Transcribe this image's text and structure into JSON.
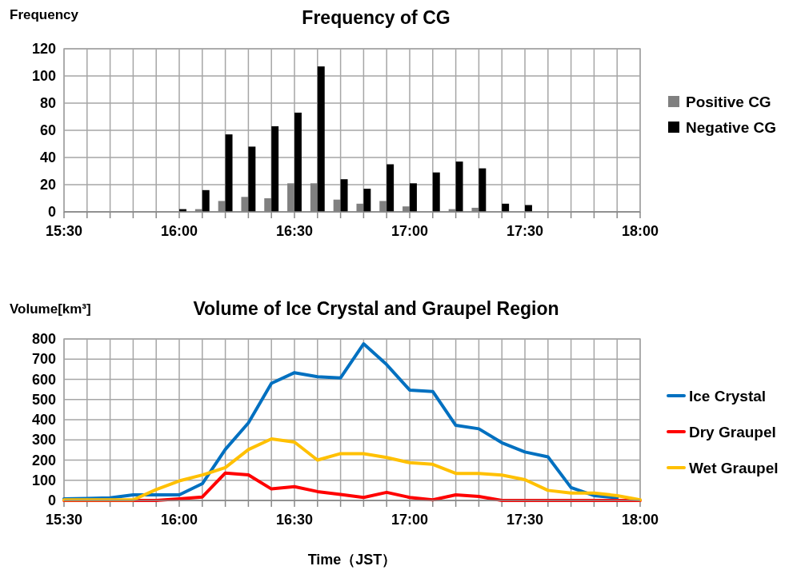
{
  "chart_data": [
    {
      "type": "bar",
      "title": "Frequency of CG",
      "ylabel": "Frequency",
      "x": [
        16.0,
        16.1,
        16.2,
        16.3,
        16.4,
        16.5,
        16.6,
        16.7,
        16.8,
        16.9,
        17.0,
        17.1,
        17.2,
        17.3,
        17.4,
        17.5
      ],
      "series": [
        {
          "name": "Positive CG",
          "color": "#808080",
          "values": [
            0,
            2,
            8,
            11,
            10,
            21,
            21,
            9,
            6,
            8,
            4,
            0,
            2,
            3,
            0,
            0
          ]
        },
        {
          "name": "Negative CG",
          "color": "#000000",
          "values": [
            2,
            16,
            57,
            48,
            63,
            73,
            107,
            24,
            17,
            35,
            21,
            29,
            37,
            32,
            6,
            5
          ]
        }
      ],
      "xlim": [
        15.5,
        18
      ],
      "xticks": [
        {
          "value": 15.5,
          "label": "15:30"
        },
        {
          "value": 15.6,
          "label": null
        },
        {
          "value": 15.7,
          "label": null
        },
        {
          "value": 15.8,
          "label": null
        },
        {
          "value": 15.9,
          "label": null
        },
        {
          "value": 16,
          "label": "16:00"
        },
        {
          "value": 16.1,
          "label": null
        },
        {
          "value": 16.2,
          "label": null
        },
        {
          "value": 16.3,
          "label": null
        },
        {
          "value": 16.4,
          "label": null
        },
        {
          "value": 16.5,
          "label": "16:30"
        },
        {
          "value": 16.6,
          "label": null
        },
        {
          "value": 16.7,
          "label": null
        },
        {
          "value": 16.8,
          "label": null
        },
        {
          "value": 16.9,
          "label": null
        },
        {
          "value": 17,
          "label": "17:00"
        },
        {
          "value": 17.1,
          "label": null
        },
        {
          "value": 17.2,
          "label": null
        },
        {
          "value": 17.3,
          "label": null
        },
        {
          "value": 17.4,
          "label": null
        },
        {
          "value": 17.5,
          "label": "17:30"
        },
        {
          "value": 17.6,
          "label": null
        },
        {
          "value": 17.7,
          "label": null
        },
        {
          "value": 17.8,
          "label": null
        },
        {
          "value": 17.9,
          "label": null
        },
        {
          "value": 18,
          "label": "18:00"
        }
      ],
      "ylim": [
        0,
        120
      ],
      "yticks": [
        0,
        20,
        40,
        60,
        80,
        100,
        120
      ],
      "grid": true,
      "legend": "right"
    },
    {
      "type": "line",
      "title": "Volume of Ice Crystal and Graupel Region",
      "ylabel": "Volume[km³]",
      "xlabel": "Time（JST）",
      "x": [
        15.5,
        15.6,
        15.7,
        15.8,
        15.9,
        16.0,
        16.1,
        16.2,
        16.3,
        16.4,
        16.5,
        16.6,
        16.7,
        16.8,
        16.9,
        17.0,
        17.1,
        17.2,
        17.3,
        17.4,
        17.5,
        17.6,
        17.7,
        17.8,
        17.9,
        18.0
      ],
      "series": [
        {
          "name": "Ice Crystal",
          "color": "#0070c0",
          "values": [
            8,
            10,
            13,
            28,
            28,
            28,
            83,
            253,
            384,
            580,
            633,
            613,
            607,
            776,
            673,
            547,
            540,
            372,
            355,
            286,
            240,
            216,
            64,
            24,
            13,
            null
          ]
        },
        {
          "name": "Dry Graupel",
          "color": "#ff0000",
          "values": [
            0,
            0,
            0,
            0,
            0,
            8,
            17,
            136,
            127,
            57,
            68,
            44,
            30,
            15,
            40,
            15,
            3,
            28,
            20,
            0,
            0,
            0,
            0,
            0,
            0,
            0
          ]
        },
        {
          "name": "Wet Graupel",
          "color": "#ffc000",
          "values": [
            3,
            3,
            3,
            3,
            54,
            97,
            126,
            163,
            252,
            305,
            289,
            200,
            232,
            232,
            213,
            187,
            179,
            134,
            134,
            126,
            103,
            50,
            37,
            37,
            24,
            3
          ]
        }
      ],
      "xlim": [
        15.5,
        18
      ],
      "xticks": [
        {
          "value": 15.5,
          "label": "15:30"
        },
        {
          "value": 15.6,
          "label": null
        },
        {
          "value": 15.7,
          "label": null
        },
        {
          "value": 15.8,
          "label": null
        },
        {
          "value": 15.9,
          "label": null
        },
        {
          "value": 16,
          "label": "16:00"
        },
        {
          "value": 16.1,
          "label": null
        },
        {
          "value": 16.2,
          "label": null
        },
        {
          "value": 16.3,
          "label": null
        },
        {
          "value": 16.4,
          "label": null
        },
        {
          "value": 16.5,
          "label": "16:30"
        },
        {
          "value": 16.6,
          "label": null
        },
        {
          "value": 16.7,
          "label": null
        },
        {
          "value": 16.8,
          "label": null
        },
        {
          "value": 16.9,
          "label": null
        },
        {
          "value": 17,
          "label": "17:00"
        },
        {
          "value": 17.1,
          "label": null
        },
        {
          "value": 17.2,
          "label": null
        },
        {
          "value": 17.3,
          "label": null
        },
        {
          "value": 17.4,
          "label": null
        },
        {
          "value": 17.5,
          "label": "17:30"
        },
        {
          "value": 17.6,
          "label": null
        },
        {
          "value": 17.7,
          "label": null
        },
        {
          "value": 17.8,
          "label": null
        },
        {
          "value": 17.9,
          "label": null
        },
        {
          "value": 18,
          "label": "18:00"
        }
      ],
      "ylim": [
        0,
        800
      ],
      "yticks": [
        0,
        100,
        200,
        300,
        400,
        500,
        600,
        700,
        800
      ],
      "grid": true,
      "legend": "right",
      "line_style": "solid",
      "marker": "none"
    }
  ]
}
